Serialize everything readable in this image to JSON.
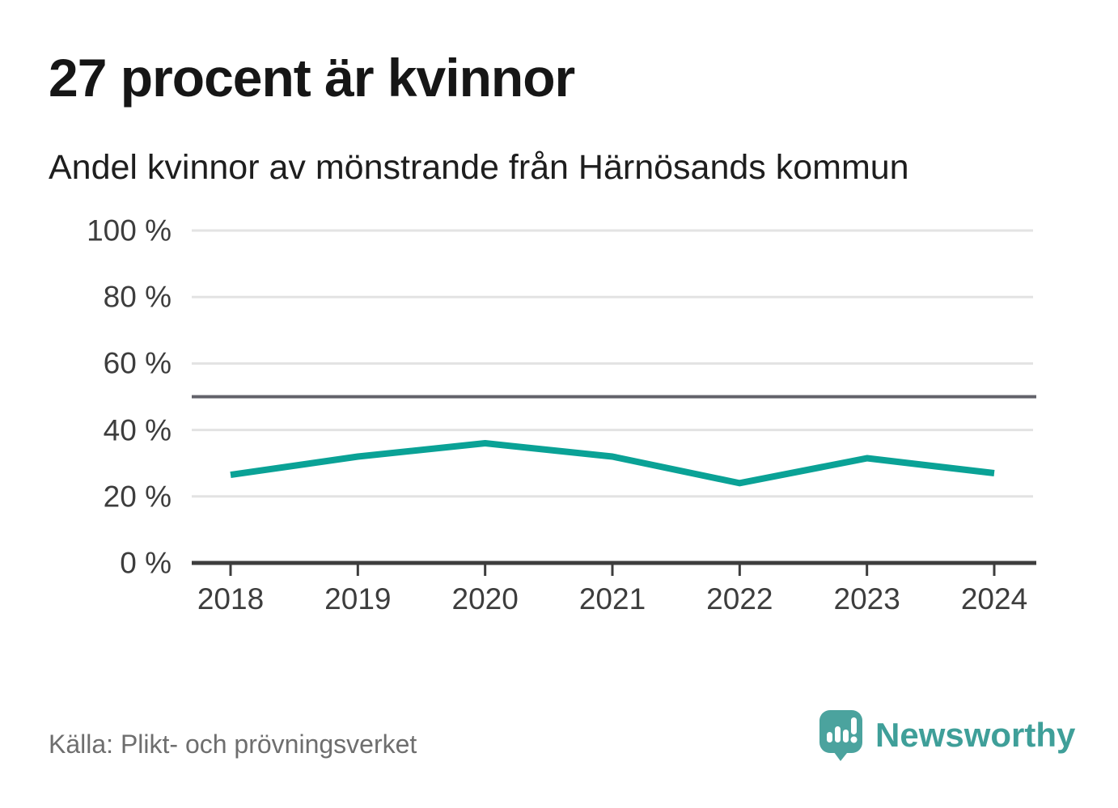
{
  "chart_data": {
    "type": "line",
    "title": "27 procent är kvinnor",
    "subtitle": "Andel kvinnor av mönstrande från Härnösands kommun",
    "categories": [
      "2018",
      "2019",
      "2020",
      "2021",
      "2022",
      "2023",
      "2024"
    ],
    "series": [
      {
        "name": "Andel kvinnor av mönstrande",
        "values": [
          26.5,
          32,
          36,
          32,
          24,
          31.5,
          27
        ]
      }
    ],
    "unit": "%",
    "ylim": [
      0,
      100
    ],
    "yticks": [
      0,
      20,
      40,
      60,
      80,
      100
    ],
    "ytick_labels": [
      "0 %",
      "20 %",
      "40 %",
      "60 %",
      "80 %",
      "100 %"
    ],
    "reference_line_y": 50,
    "grid": true,
    "legend": "none",
    "line_color": "#0aa296",
    "reference_line_color": "#62626a",
    "axis_color": "#3d3d3d",
    "gridline_color": "#e3e3e3"
  },
  "footer": {
    "source": "Källa: Plikt- och prövningsverket",
    "source_color": "#6e6e6e",
    "brand": "Newsworthy",
    "brand_color": "#3f9f99",
    "logo_color": "#4ba39e"
  }
}
